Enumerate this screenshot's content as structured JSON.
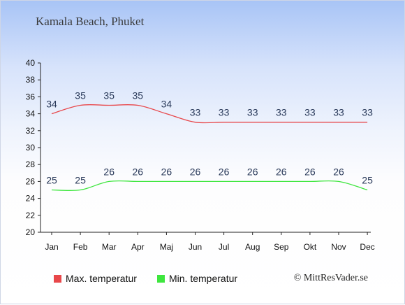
{
  "chart_data": {
    "type": "line",
    "title": "Kamala Beach, Phuket",
    "categories": [
      "Jan",
      "Feb",
      "Mar",
      "Apr",
      "Maj",
      "Jun",
      "Jul",
      "Aug",
      "Sep",
      "Okt",
      "Nov",
      "Dec"
    ],
    "series": [
      {
        "name": "Max. temperatur",
        "color": "#e8474a",
        "values": [
          34,
          35,
          35,
          35,
          34,
          33,
          33,
          33,
          33,
          33,
          33,
          33
        ]
      },
      {
        "name": "Min. temperatur",
        "color": "#3ee63e",
        "values": [
          25,
          25,
          26,
          26,
          26,
          26,
          26,
          26,
          26,
          26,
          26,
          25
        ]
      }
    ],
    "yticks": [
      20,
      22,
      24,
      26,
      28,
      30,
      32,
      34,
      36,
      38,
      40
    ],
    "ylim": [
      20,
      40
    ],
    "xlabel": "",
    "ylabel": "",
    "grid": false,
    "legend": "bottom"
  },
  "copyright": "© MittResVader.se"
}
